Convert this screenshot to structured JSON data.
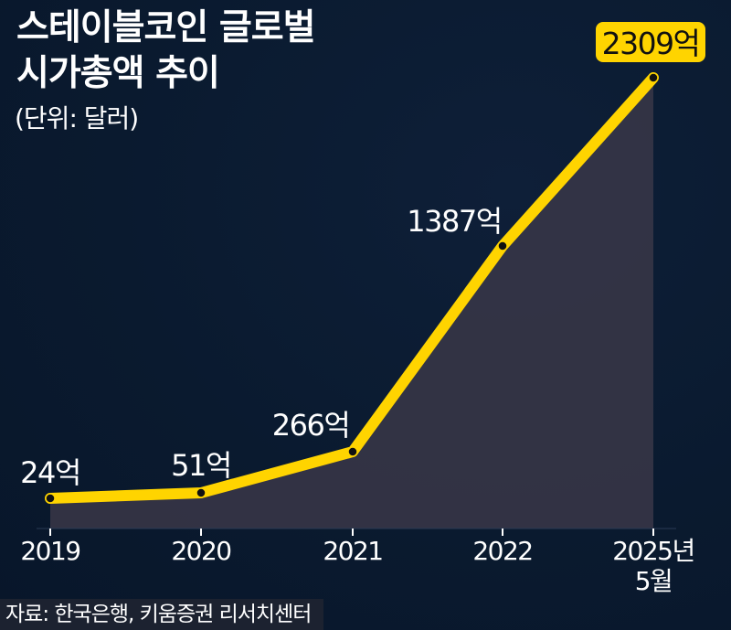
{
  "header": {
    "title_line1": "스테이블코인 글로벌",
    "title_line2": "시가총액 추이",
    "unit": "(단위: 달러)"
  },
  "source": "자료: 한국은행, 키움증권 리서치센터",
  "colors": {
    "background": "#0a1a2f",
    "line": "#ffd400",
    "area": "#3a3748",
    "highlight_badge": "#ffd400",
    "text": "#ffffff"
  },
  "chart_data": {
    "type": "area",
    "categories": [
      "2019",
      "2020",
      "2021",
      "2022",
      "2025년\n5월"
    ],
    "values": [
      24,
      51,
      266,
      1387,
      2309
    ],
    "data_labels": [
      "24억",
      "51억",
      "266억",
      "1387억",
      "2309억"
    ],
    "highlight_index": 4,
    "ylim": [
      0,
      2309
    ],
    "grid": false,
    "legend": "none"
  }
}
